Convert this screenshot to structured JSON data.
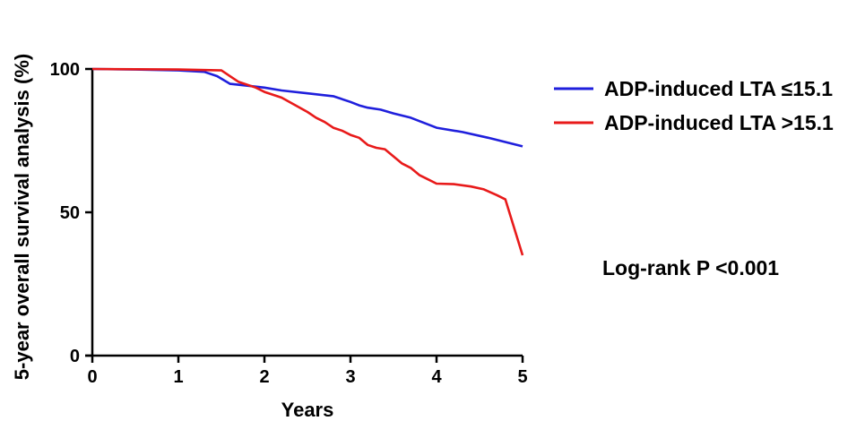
{
  "chart_data": {
    "type": "line",
    "title": "",
    "xlabel": "Years",
    "ylabel": "5-year overall survival analysis (%)",
    "xlim": [
      0,
      5
    ],
    "ylim": [
      0,
      100
    ],
    "x_ticks": [
      "0",
      "1",
      "2",
      "3",
      "4",
      "5"
    ],
    "y_ticks": [
      "0",
      "50",
      "100"
    ],
    "grid": false,
    "legend_position": "right",
    "series": [
      {
        "name": "ADP-induced LTA ≤15.1",
        "color": "#1f1fdc",
        "x": [
          0,
          0.5,
          1.0,
          1.3,
          1.45,
          1.6,
          1.85,
          2.0,
          2.2,
          2.5,
          2.8,
          3.0,
          3.1,
          3.2,
          3.35,
          3.5,
          3.7,
          4.0,
          4.3,
          4.6,
          5.0
        ],
        "y": [
          100,
          99.8,
          99.5,
          99.0,
          97.5,
          94.8,
          94.0,
          93.5,
          92.5,
          91.5,
          90.5,
          88.5,
          87.3,
          86.5,
          85.8,
          84.5,
          83.0,
          79.5,
          78.0,
          76.0,
          73.0
        ]
      },
      {
        "name": "ADP-induced LTA >15.1",
        "color": "#e81a1a",
        "x": [
          0,
          1.0,
          1.5,
          1.7,
          1.9,
          2.0,
          2.2,
          2.35,
          2.5,
          2.6,
          2.7,
          2.8,
          2.9,
          3.0,
          3.1,
          3.2,
          3.3,
          3.4,
          3.5,
          3.6,
          3.7,
          3.8,
          3.9,
          4.0,
          4.2,
          4.4,
          4.55,
          4.7,
          4.8,
          5.0
        ],
        "y": [
          100,
          99.8,
          99.5,
          95.5,
          93.5,
          92.0,
          90.0,
          87.5,
          85.0,
          83.0,
          81.5,
          79.5,
          78.5,
          77.0,
          76.0,
          73.5,
          72.5,
          72.0,
          69.5,
          67.0,
          65.5,
          63.0,
          61.5,
          60.0,
          59.8,
          59.0,
          58.0,
          56.0,
          54.5,
          35.0
        ]
      }
    ],
    "annotations": [
      "Log-rank P <0.001"
    ]
  }
}
